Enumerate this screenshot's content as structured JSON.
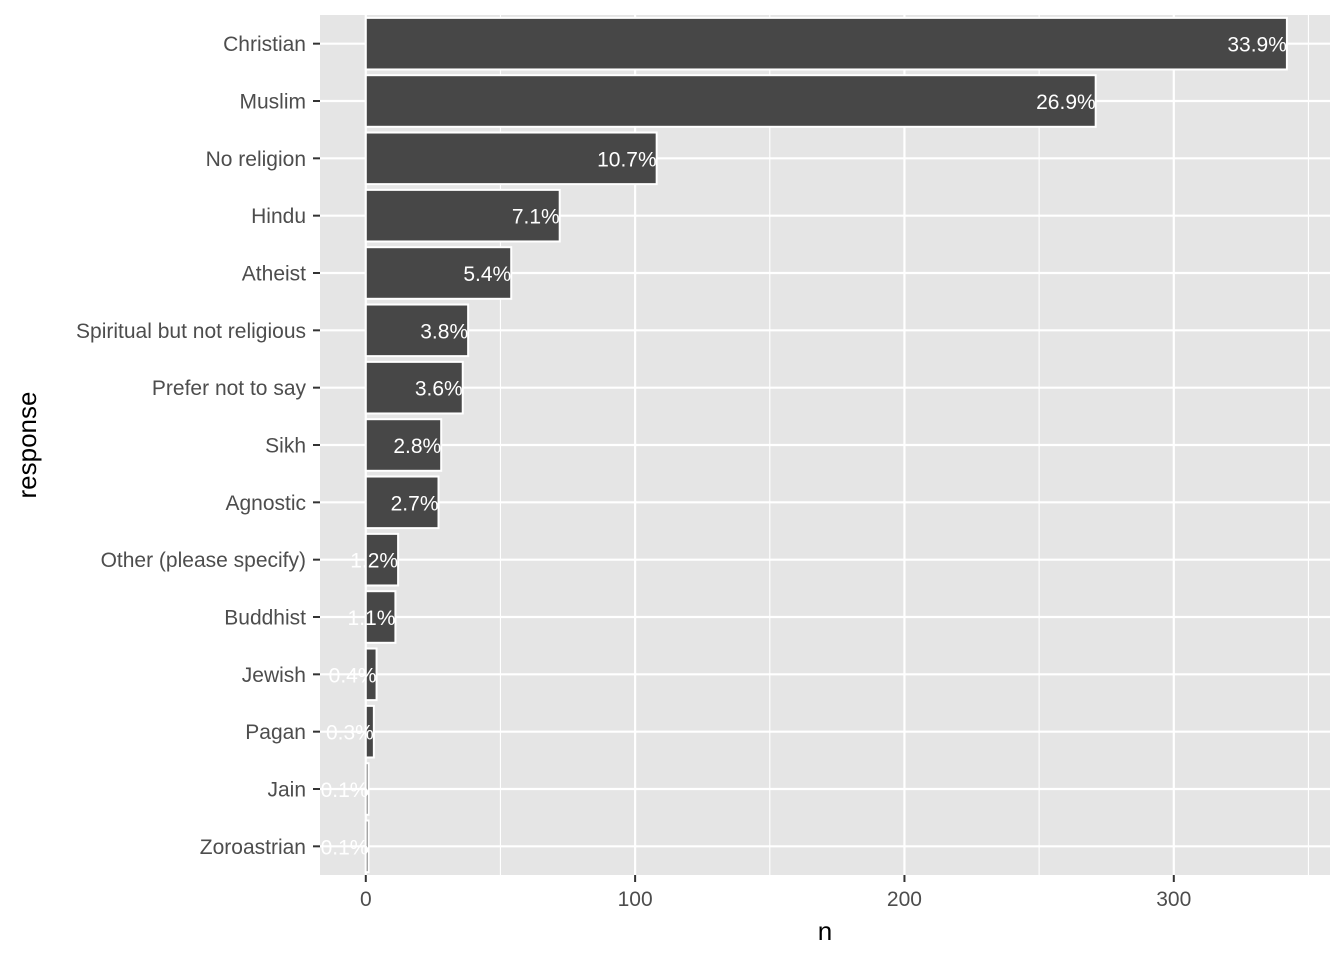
{
  "chart_data": {
    "type": "bar",
    "orientation": "horizontal",
    "xlabel": "n",
    "ylabel": "response",
    "xlim": [
      -17,
      358
    ],
    "x_ticks": [
      0,
      100,
      200,
      300
    ],
    "x_minor_ticks": [
      50,
      150,
      250,
      350
    ],
    "grid": true,
    "categories": [
      "Christian",
      "Muslim",
      "No religion",
      "Hindu",
      "Atheist",
      "Spiritual but not religious",
      "Prefer not to say",
      "Sikh",
      "Agnostic",
      "Other (please specify)",
      "Buddhist",
      "Jewish",
      "Pagan",
      "Jain",
      "Zoroastrian"
    ],
    "values": [
      342,
      271,
      108,
      72,
      54,
      38,
      36,
      28,
      27,
      12,
      11,
      4,
      3,
      1,
      1
    ],
    "labels": [
      "33.9%",
      "26.9%",
      "10.7%",
      "7.1%",
      "5.4%",
      "3.8%",
      "3.6%",
      "2.8%",
      "2.7%",
      "1.2%",
      "1.1%",
      "0.4%",
      "0.3%",
      "0.1%",
      "0.1%"
    ],
    "colors": {
      "panel": "#e5e5e5",
      "grid": "#ffffff",
      "bar_fill": "#474747",
      "bar_outline": "#ffffff",
      "label_text": "#ffffff",
      "tick_text": "#4d4d4d",
      "tick_mark": "#333333"
    }
  }
}
